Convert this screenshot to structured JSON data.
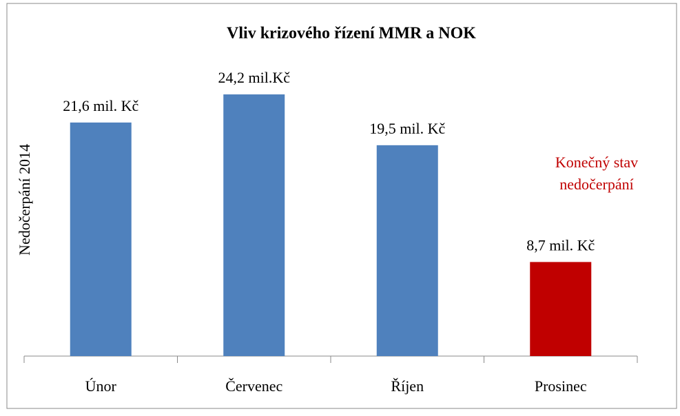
{
  "chart_data": {
    "type": "bar",
    "title": "Vliv krizového řízení MMR a NOK",
    "y_label": "Nedočerpání 2014",
    "categories": [
      "Únor",
      "Červenec",
      "Říjen",
      "Prosinec"
    ],
    "values": [
      21.6,
      24.2,
      19.5,
      8.7
    ],
    "value_labels": [
      "21,6 mil. Kč",
      "24,2 mil.Kč",
      "19,5 mil. Kč",
      "8,7 mil. Kč"
    ],
    "colors": [
      "#4f81bd",
      "#4f81bd",
      "#4f81bd",
      "#c00000"
    ],
    "ylim": [
      0,
      30
    ],
    "annotation": [
      "Konečný stav",
      "nedočerpání"
    ],
    "annotation_color": "#c00000"
  }
}
